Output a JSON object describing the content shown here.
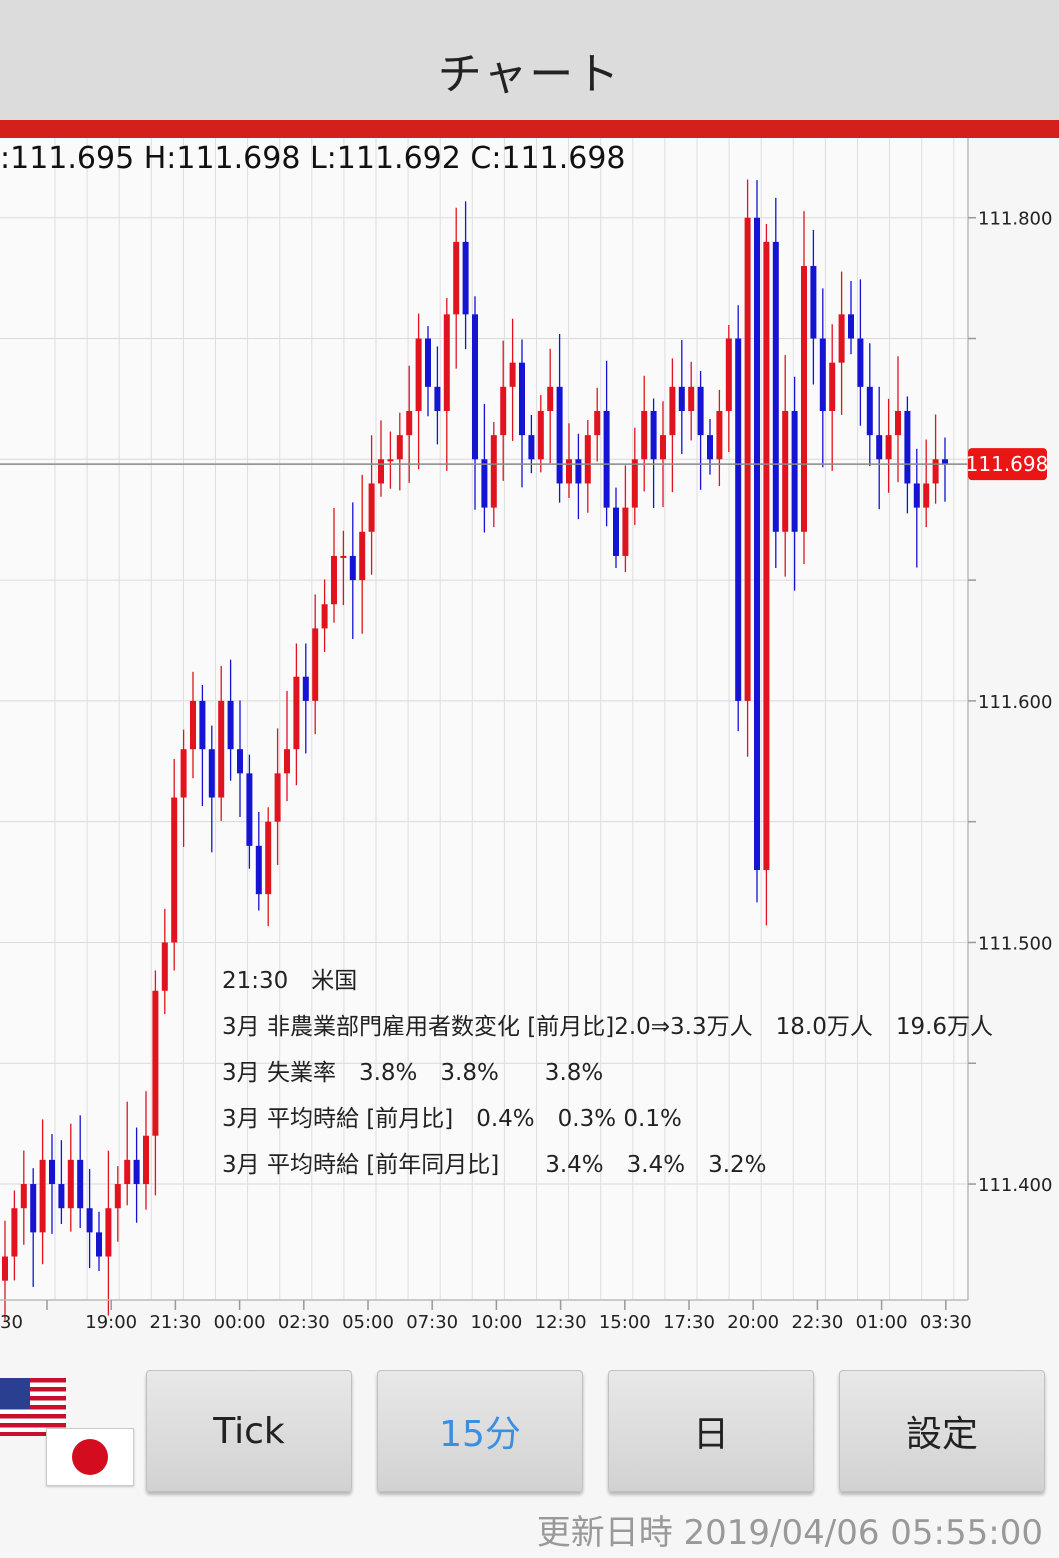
{
  "header": {
    "title": "チャート"
  },
  "ohlc_readout": ":111.695 H:111.698 L:111.692 C:111.698",
  "current_price": "111.698",
  "event": {
    "lines": [
      "21:30　米国",
      "3月 非農業部門雇用者数変化 [前月比]2.0⇒3.3万人　18.0万人　19.6万人",
      "3月 失業率　3.8%　3.8%　　3.8%",
      "3月 平均時給 [前月比]　0.4%　0.3%  0.1%",
      "3月 平均時給 [前年同月比]　　3.4%　3.4%　3.2%"
    ]
  },
  "toolbar": {
    "tick": "Tick",
    "m15": "15分",
    "day": "日",
    "settings": "設定"
  },
  "updated": "更新日時 2019/04/06 05:55:00",
  "colors": {
    "up": "#e0141e",
    "down": "#1414d2",
    "accent": "#d4201a",
    "active": "#3b8fe0"
  },
  "icons": {
    "us_flag": "us-flag-icon",
    "jp_flag": "japan-flag-icon"
  },
  "chart_data": {
    "type": "candlestick",
    "interval": "15分",
    "y_ticks": [
      "111.800",
      "111.600",
      "111.500",
      "111.400"
    ],
    "x_ticks": [
      "30",
      "19:00",
      "21:30",
      "00:00",
      "02:30",
      "05:00",
      "07:30",
      "10:00",
      "12:30",
      "15:00",
      "17:30",
      "20:00",
      "22:30",
      "01:00",
      "03:30"
    ],
    "ylim": [
      111.352,
      111.833
    ],
    "grid": true,
    "close_path": [
      111.37,
      111.39,
      111.4,
      111.38,
      111.41,
      111.4,
      111.39,
      111.41,
      111.39,
      111.38,
      111.37,
      111.39,
      111.4,
      111.41,
      111.4,
      111.42,
      111.48,
      111.5,
      111.56,
      111.58,
      111.6,
      111.58,
      111.56,
      111.6,
      111.58,
      111.57,
      111.54,
      111.52,
      111.55,
      111.57,
      111.58,
      111.61,
      111.6,
      111.63,
      111.64,
      111.66,
      111.66,
      111.65,
      111.67,
      111.69,
      111.7,
      111.7,
      111.71,
      111.72,
      111.75,
      111.73,
      111.72,
      111.76,
      111.79,
      111.76,
      111.7,
      111.68,
      111.71,
      111.73,
      111.74,
      111.71,
      111.7,
      111.72,
      111.73,
      111.69,
      111.7,
      111.69,
      111.71,
      111.72,
      111.68,
      111.66,
      111.68,
      111.7,
      111.72,
      111.7,
      111.71,
      111.73,
      111.72,
      111.73,
      111.71,
      111.7,
      111.72,
      111.75,
      111.6,
      111.8,
      111.53,
      111.79,
      111.67,
      111.72,
      111.67,
      111.78,
      111.75,
      111.72,
      111.74,
      111.76,
      111.75,
      111.73,
      111.71,
      111.7,
      111.71,
      111.72,
      111.69,
      111.68,
      111.69,
      111.7,
      111.698
    ]
  }
}
